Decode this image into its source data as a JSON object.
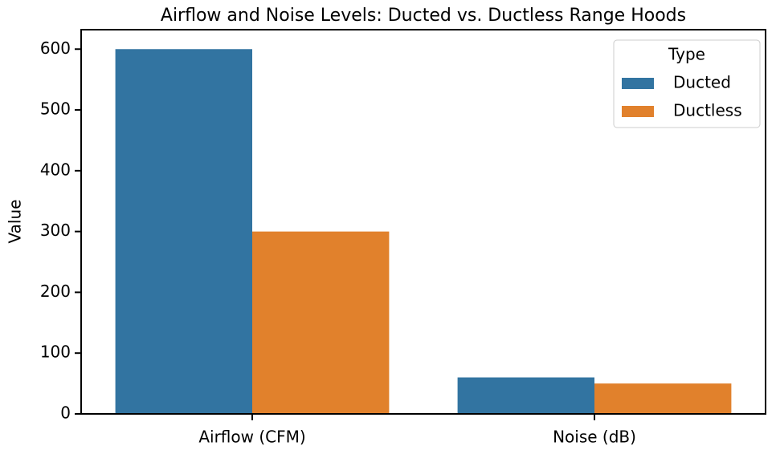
{
  "chart_data": {
    "type": "bar",
    "title": "Airflow and Noise Levels: Ducted vs. Ductless Range Hoods",
    "ylabel": "Value",
    "categories": [
      "Airflow (CFM)",
      "Noise (dB)"
    ],
    "series": [
      {
        "name": "Ducted",
        "color": "#3274a1",
        "values": [
          600,
          60
        ]
      },
      {
        "name": "Ductless",
        "color": "#e1812c",
        "values": [
          300,
          50
        ]
      }
    ],
    "ylim": [
      0,
      632
    ],
    "yticks": [
      0,
      100,
      200,
      300,
      400,
      500,
      600
    ],
    "legend_title": "Type",
    "legend": "upper right"
  }
}
